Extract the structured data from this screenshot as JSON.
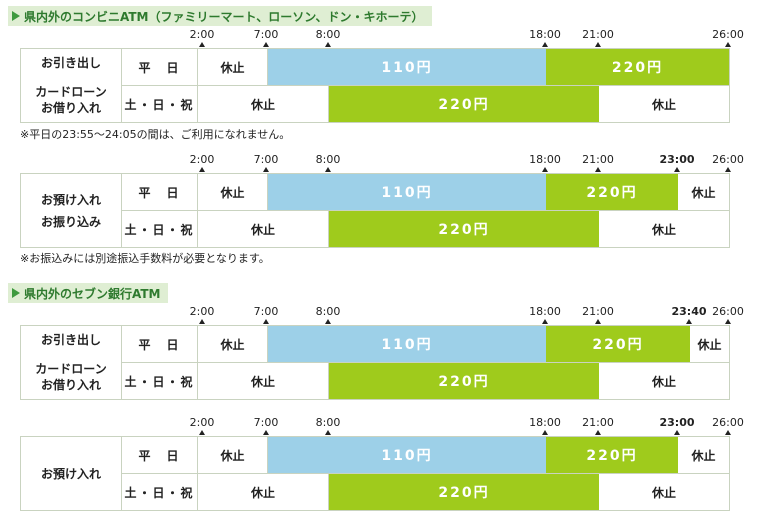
{
  "convenience": {
    "title": "県内外のコンビニATM（ファミリーマート、ローソン、ドン・キホーテ）",
    "withdraw": {
      "labels": [
        "お引き出し",
        "カードローン",
        "お借り入れ"
      ],
      "timeline": [
        "2:00",
        "7:00",
        "8:00",
        "18:00",
        "21:00",
        "26:00"
      ],
      "weekday": {
        "day": "平　日",
        "closed": "休止",
        "blue": "110円",
        "green": "220円"
      },
      "weekend": {
        "day": "土・日・祝",
        "closed1": "休止",
        "green": "220円",
        "closed2": "休止"
      },
      "note": "※平日の23:55～24:05の間は、ご利用になれません。"
    },
    "deposit": {
      "labels": [
        "お預け入れ",
        "お振り込み"
      ],
      "timeline": [
        "2:00",
        "7:00",
        "8:00",
        "18:00",
        "21:00",
        "23:00",
        "26:00"
      ],
      "weekday": {
        "day": "平　日",
        "closed1": "休止",
        "blue": "110円",
        "green": "220円",
        "closed2": "休止"
      },
      "weekend": {
        "day": "土・日・祝",
        "closed1": "休止",
        "green": "220円",
        "closed2": "休止"
      },
      "note": "※お振込みには別途振込手数料が必要となります。"
    }
  },
  "seven": {
    "title": "県内外のセブン銀行ATM",
    "withdraw": {
      "labels": [
        "お引き出し",
        "カードローン",
        "お借り入れ"
      ],
      "timeline": [
        "2:00",
        "7:00",
        "8:00",
        "18:00",
        "21:00",
        "23:40",
        "26:00"
      ],
      "weekday": {
        "day": "平　日",
        "closed1": "休止",
        "blue": "110円",
        "green": "220円",
        "closed2": "休止"
      },
      "weekend": {
        "day": "土・日・祝",
        "closed1": "休止",
        "green": "220円",
        "closed2": "休止"
      }
    },
    "deposit": {
      "labels": [
        "お預け入れ"
      ],
      "timeline": [
        "2:00",
        "7:00",
        "8:00",
        "18:00",
        "21:00",
        "23:00",
        "26:00"
      ],
      "weekday": {
        "day": "平　日",
        "closed1": "休止",
        "blue": "110円",
        "green": "220円",
        "closed2": "休止"
      },
      "weekend": {
        "day": "土・日・祝",
        "closed1": "休止",
        "green": "220円",
        "closed2": "休止"
      }
    }
  },
  "colors": {
    "blue": "#9dd0e8",
    "green": "#9fcb1c",
    "title_bg": "#dfeed3"
  }
}
